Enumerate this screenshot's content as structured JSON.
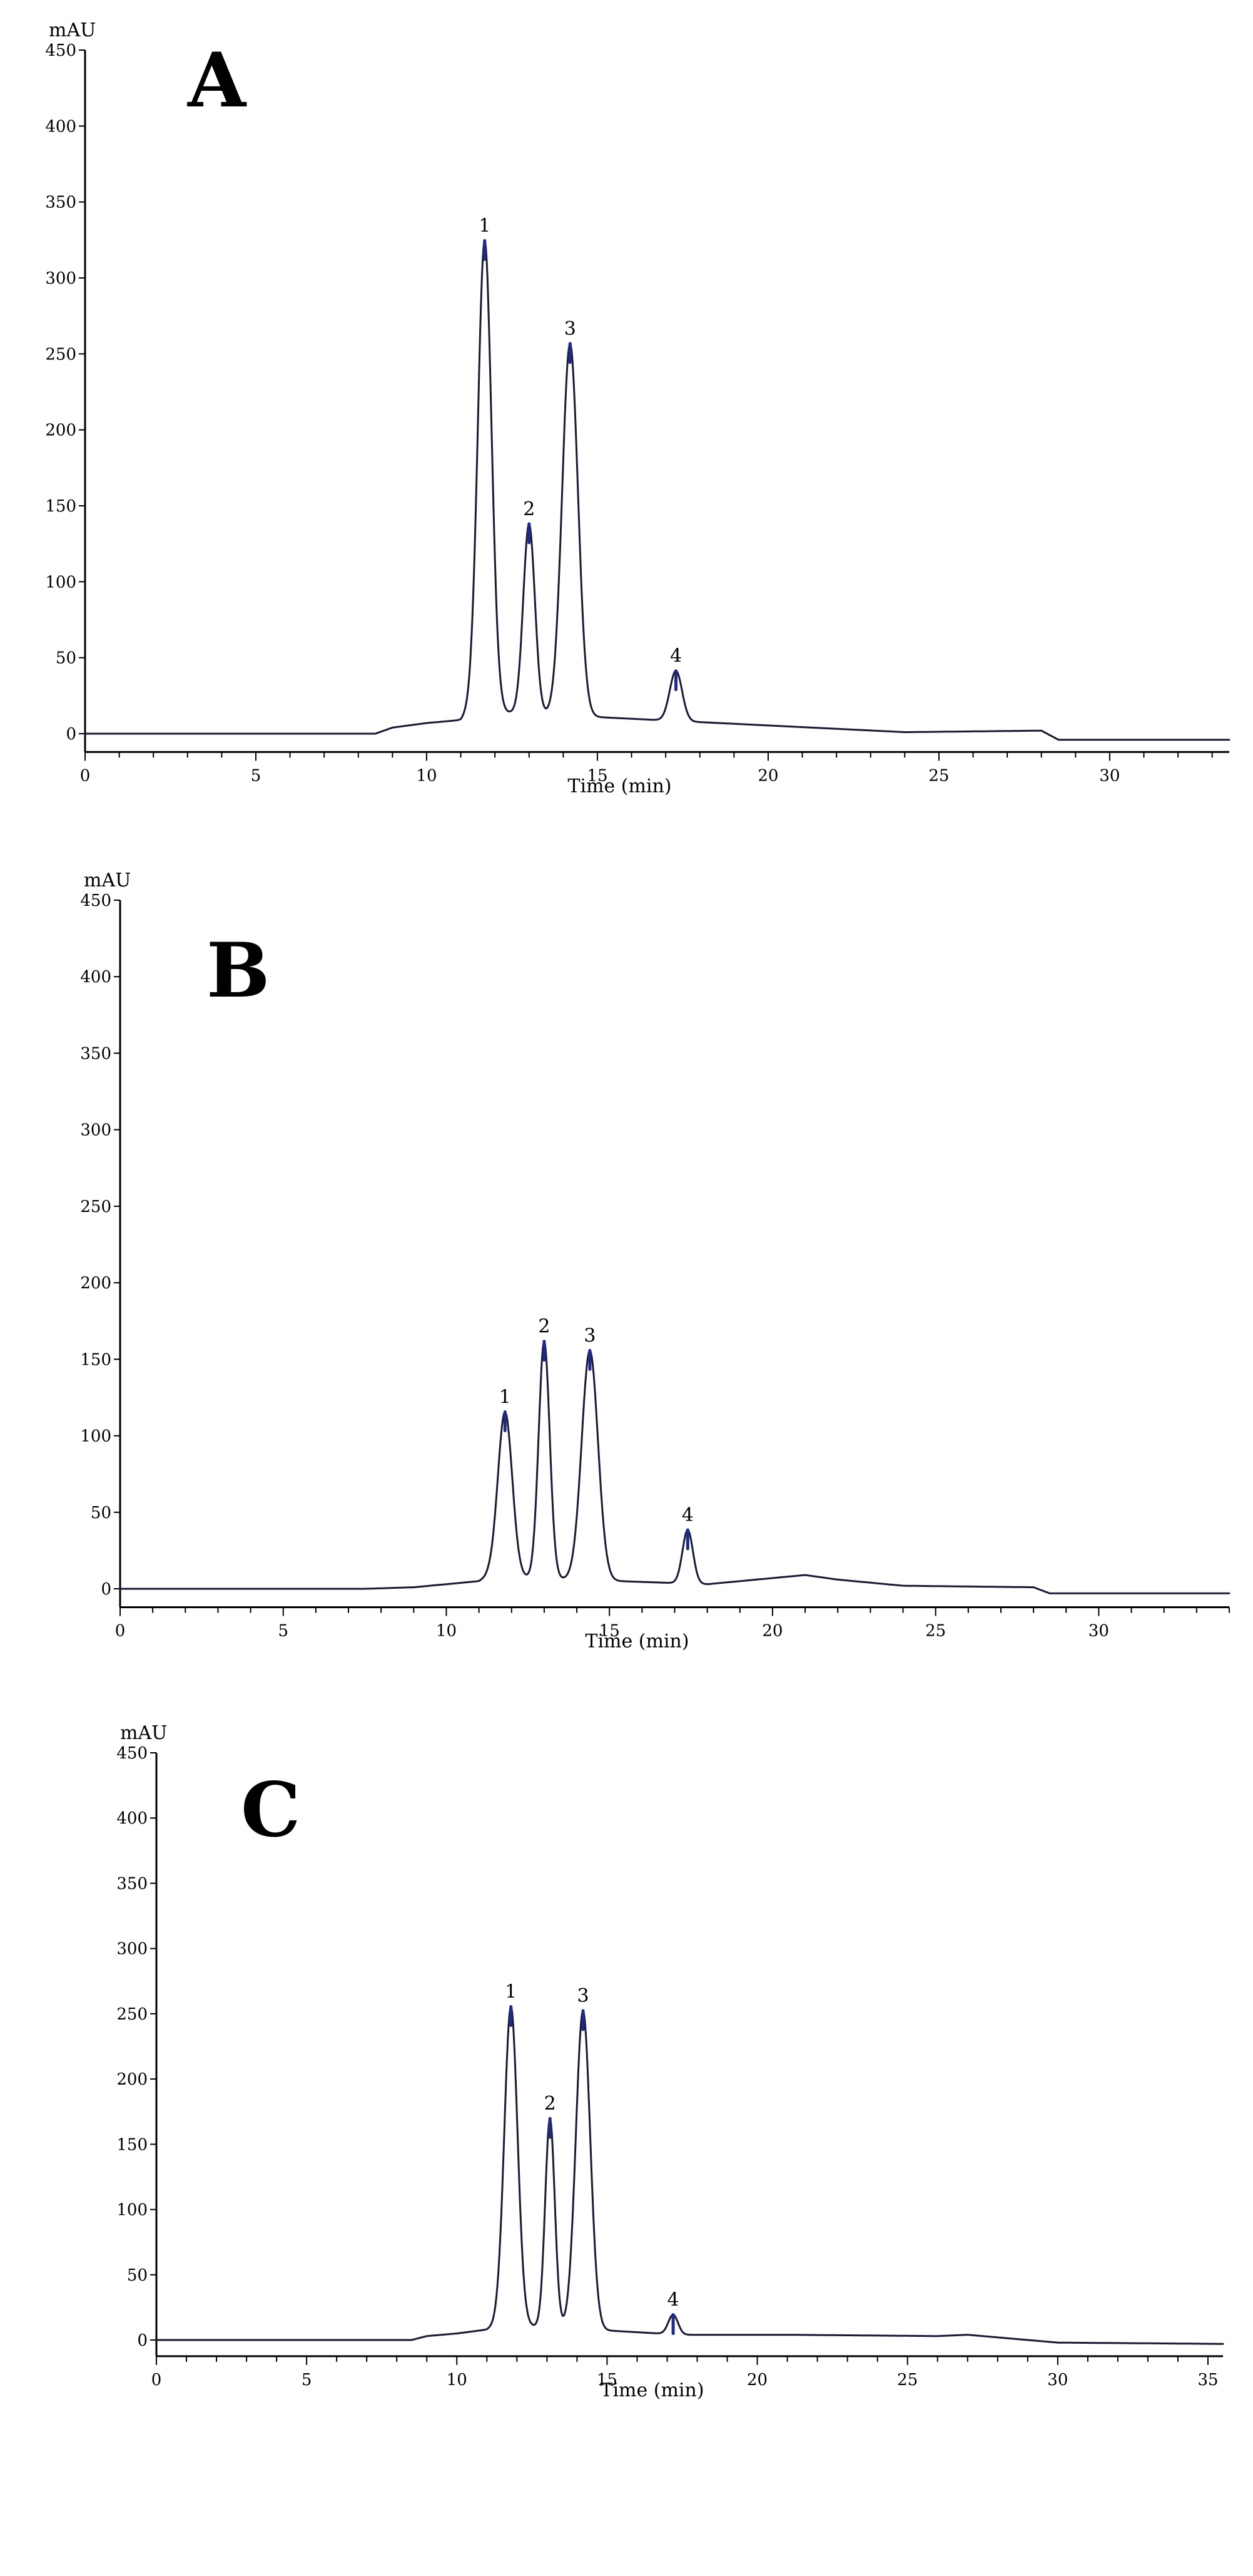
{
  "colors": {
    "trace": "#1a1a33",
    "peak_apex": "#1f2a8a",
    "axis": "#000000"
  },
  "chart_data": [
    {
      "type": "line",
      "title": "A",
      "xlabel": "Time (min)",
      "ylabel": "mAU",
      "xlim": [
        0,
        33.5
      ],
      "ylim": [
        -10,
        450
      ],
      "x_ticks": [
        0,
        5,
        10,
        15,
        20,
        25,
        30
      ],
      "y_ticks": [
        0,
        50,
        100,
        150,
        200,
        250,
        300,
        350,
        400,
        450
      ],
      "grid": false,
      "baseline": [
        [
          0,
          0
        ],
        [
          8.5,
          0
        ],
        [
          9,
          4
        ],
        [
          10,
          7
        ],
        [
          11,
          9
        ],
        [
          11.3,
          15
        ],
        [
          24,
          1
        ],
        [
          28,
          2
        ],
        [
          28.5,
          -4
        ],
        [
          33.5,
          -4
        ]
      ],
      "peaks": [
        {
          "label": "1",
          "x": 11.7,
          "y": 310,
          "width": 0.2
        },
        {
          "label": "2",
          "x": 13.0,
          "y": 125,
          "width": 0.17
        },
        {
          "label": "3",
          "x": 14.2,
          "y": 245,
          "width": 0.23
        },
        {
          "label": "4",
          "x": 17.3,
          "y": 33,
          "width": 0.18
        }
      ]
    },
    {
      "type": "line",
      "title": "B",
      "xlabel": "Time (min)",
      "ylabel": "mAU",
      "xlim": [
        0,
        34
      ],
      "ylim": [
        -10,
        450
      ],
      "x_ticks": [
        0,
        5,
        10,
        15,
        20,
        25,
        30
      ],
      "y_ticks": [
        0,
        50,
        100,
        150,
        200,
        250,
        300,
        350,
        400,
        450
      ],
      "grid": false,
      "baseline": [
        [
          0,
          0
        ],
        [
          7.5,
          0
        ],
        [
          9,
          1
        ],
        [
          10,
          3
        ],
        [
          11,
          5
        ],
        [
          11.3,
          8
        ],
        [
          18,
          3
        ],
        [
          20,
          7
        ],
        [
          21,
          9
        ],
        [
          22,
          6
        ],
        [
          24,
          2
        ],
        [
          28,
          1
        ],
        [
          28.5,
          -3
        ],
        [
          34,
          -3
        ]
      ],
      "peaks": [
        {
          "label": "1",
          "x": 11.8,
          "y": 108,
          "width": 0.22
        },
        {
          "label": "2",
          "x": 13.0,
          "y": 155,
          "width": 0.17
        },
        {
          "label": "3",
          "x": 14.4,
          "y": 150,
          "width": 0.25
        },
        {
          "label": "4",
          "x": 17.4,
          "y": 35,
          "width": 0.16
        }
      ]
    },
    {
      "type": "line",
      "title": "C",
      "xlabel": "Time (min)",
      "ylabel": "mAU",
      "xlim": [
        0,
        35.5
      ],
      "ylim": [
        -10,
        450
      ],
      "x_ticks": [
        0,
        5,
        10,
        15,
        20,
        25,
        30,
        35
      ],
      "y_ticks": [
        0,
        50,
        100,
        150,
        200,
        250,
        300,
        350,
        400,
        450
      ],
      "grid": false,
      "baseline": [
        [
          0,
          0
        ],
        [
          8.5,
          0
        ],
        [
          9,
          3
        ],
        [
          10,
          5
        ],
        [
          11,
          8
        ],
        [
          11.4,
          12
        ],
        [
          17.5,
          4
        ],
        [
          21,
          4
        ],
        [
          26,
          3
        ],
        [
          27,
          4
        ],
        [
          30,
          -2
        ],
        [
          35.5,
          -3
        ]
      ],
      "peaks": [
        {
          "label": "1",
          "x": 11.8,
          "y": 244,
          "width": 0.22
        },
        {
          "label": "2",
          "x": 13.1,
          "y": 160,
          "width": 0.16
        },
        {
          "label": "3",
          "x": 14.2,
          "y": 244,
          "width": 0.24
        },
        {
          "label": "4",
          "x": 17.2,
          "y": 15,
          "width": 0.16
        }
      ]
    }
  ]
}
